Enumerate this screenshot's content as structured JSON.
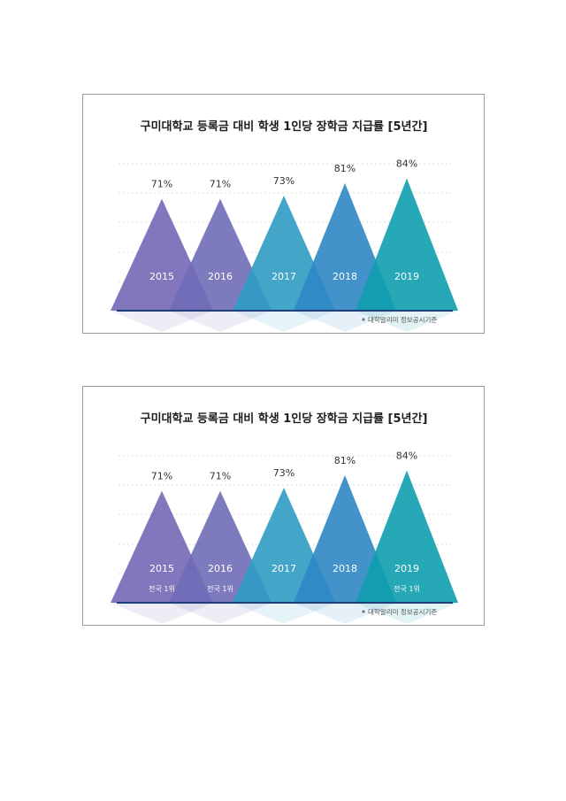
{
  "chart_data": [
    {
      "type": "bar",
      "title": "구미대학교 등록금 대비 학생 1인당 장학금 지급률 [5년간]",
      "categories": [
        "2015",
        "2016",
        "2017",
        "2018",
        "2019"
      ],
      "values": [
        71,
        71,
        73,
        81,
        84
      ],
      "value_labels": [
        "71%",
        "71%",
        "73%",
        "81%",
        "84%"
      ],
      "unit": "%",
      "ylim": [
        0,
        100
      ],
      "grid": true,
      "legend": "none",
      "note": "대학알리미 정보공시기준",
      "colors": [
        "#7467b6",
        "#6f6db7",
        "#2f9cc3",
        "#2f87c4",
        "#0f9fae"
      ]
    },
    {
      "type": "bar",
      "title": "구미대학교 등록금 대비 학생 1인당 장학금 지급률 [5년간]",
      "categories": [
        "2015",
        "2016",
        "2017",
        "2018",
        "2019"
      ],
      "values": [
        71,
        71,
        73,
        81,
        84
      ],
      "value_labels": [
        "71%",
        "71%",
        "73%",
        "81%",
        "84%"
      ],
      "unit": "%",
      "ylim": [
        0,
        100
      ],
      "grid": true,
      "legend": "none",
      "annotations": [
        "전국 1위",
        "전국 1위",
        "",
        "",
        "전국 1위"
      ],
      "note": "대학알리미 정보공시기준",
      "colors": [
        "#7467b6",
        "#6f6db7",
        "#2f9cc3",
        "#2f87c4",
        "#0f9fae"
      ]
    }
  ]
}
